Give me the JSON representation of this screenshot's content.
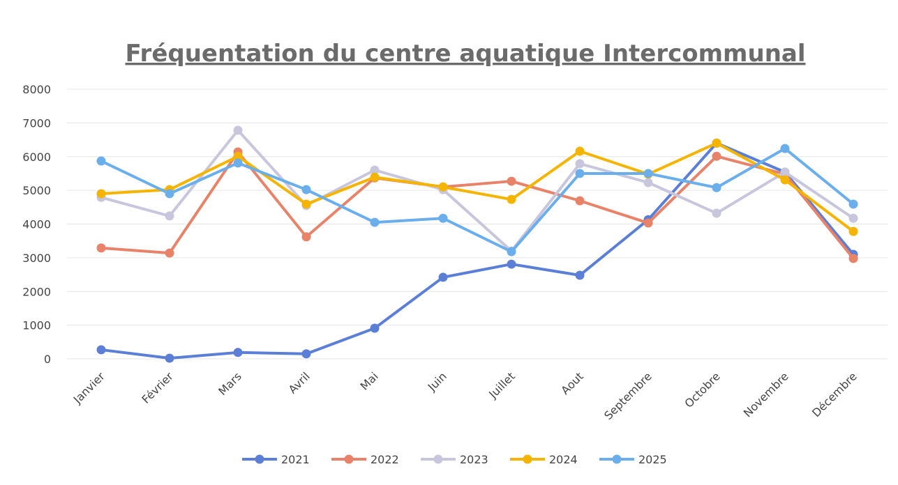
{
  "chart_data": {
    "type": "line",
    "title": "Fréquentation du centre aquatique Intercommunal",
    "categories": [
      "Janvier",
      "Février",
      "Mars",
      "Avril",
      "Mai",
      "Juin",
      "Juillet",
      "Aout",
      "Septembre",
      "Octobre",
      "Novembre",
      "Décembre"
    ],
    "series": [
      {
        "name": "2021",
        "color": "#5b7fd6",
        "values": [
          270,
          20,
          190,
          150,
          910,
          2420,
          2810,
          2480,
          4130,
          6400,
          5540,
          3100
        ]
      },
      {
        "name": "2022",
        "color": "#e8836a",
        "values": [
          3290,
          3140,
          6140,
          3620,
          5370,
          5100,
          5270,
          4690,
          4030,
          6010,
          5480,
          2980
        ]
      },
      {
        "name": "2023",
        "color": "#c8c6dc",
        "values": [
          4790,
          4240,
          6780,
          4550,
          5600,
          5020,
          3200,
          5790,
          5230,
          4320,
          5540,
          4170
        ]
      },
      {
        "name": "2024",
        "color": "#f5b400",
        "values": [
          4900,
          5020,
          6010,
          4590,
          5390,
          5100,
          4730,
          6160,
          5480,
          6400,
          5310,
          3780
        ]
      },
      {
        "name": "2025",
        "color": "#6aaeec",
        "values": [
          5870,
          4900,
          5810,
          5020,
          4050,
          4170,
          3180,
          5500,
          5500,
          5080,
          6240,
          4590
        ]
      }
    ],
    "ylim": [
      0,
      8000
    ],
    "yticks": [
      0,
      1000,
      2000,
      3000,
      4000,
      5000,
      6000,
      7000,
      8000
    ],
    "grid": true,
    "legend": "bottom"
  }
}
